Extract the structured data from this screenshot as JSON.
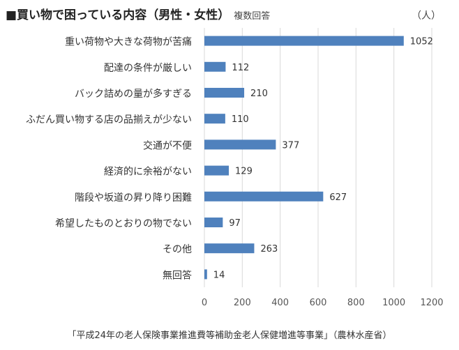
{
  "chart_data": {
    "type": "bar",
    "orientation": "horizontal",
    "title": "■買い物で困っている内容（男性・女性）",
    "subtitle": "複数回答",
    "unit": "（人）",
    "categories": [
      "重い荷物や大きな荷物が苦痛",
      "配達の条件が厳しい",
      "バック詰めの量が多すぎる",
      "ふだん買い物する店の品揃えが少ない",
      "交通が不便",
      "経済的に余裕がない",
      "階段や坂道の昇り降り困難",
      "希望したものとおりの物でない",
      "その他",
      "無回答"
    ],
    "values": [
      1052,
      112,
      210,
      110,
      377,
      129,
      627,
      97,
      263,
      14
    ],
    "xlim": [
      0,
      1200
    ],
    "xticks": [
      0,
      200,
      400,
      600,
      800,
      1000,
      1200
    ],
    "grid": "vertical",
    "data_labels": true,
    "source": "「平成24年の老人保険事業推進費等補助金老人保健増進等事業」（農林水産省）",
    "colors": {
      "bar": "#4f81bd",
      "grid": "#d9d9d9",
      "text": "#333333"
    }
  }
}
